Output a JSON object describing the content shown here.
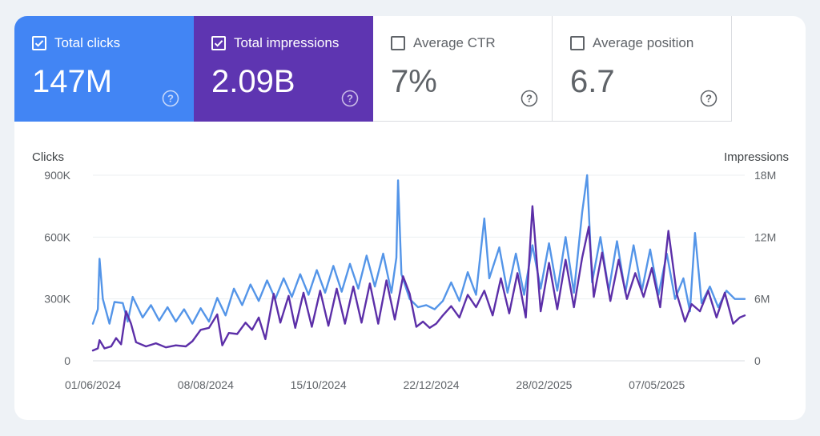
{
  "metrics": [
    {
      "label": "Total clicks",
      "value": "147M",
      "selected": true,
      "color": "#4285f4"
    },
    {
      "label": "Total impressions",
      "value": "2.09B",
      "selected": true,
      "color": "#5e35b1"
    },
    {
      "label": "Average CTR",
      "value": "7%",
      "selected": false,
      "color": "#ffffff"
    },
    {
      "label": "Average position",
      "value": "6.7",
      "selected": false,
      "color": "#ffffff"
    }
  ],
  "chart_data": {
    "type": "line",
    "xlabel": "",
    "ylabel": "Clicks",
    "y2label": "Impressions",
    "ylim": [
      0,
      900000
    ],
    "y2lim": [
      0,
      18000000
    ],
    "y_ticks": [
      "0",
      "300K",
      "600K",
      "900K"
    ],
    "y2_ticks": [
      "0",
      "6M",
      "12M",
      "18M"
    ],
    "x_range": [
      "2024-06-01",
      "2025-06-29"
    ],
    "x_ticks": [
      "01/06/2024",
      "08/08/2024",
      "15/10/2024",
      "22/12/2024",
      "28/02/2025",
      "07/05/2025"
    ],
    "grid": true,
    "series": [
      {
        "name": "Clicks",
        "axis": "left",
        "color": "#5495e8",
        "points": [
          [
            "2024-06-01",
            180000
          ],
          [
            "2024-06-04",
            250000
          ],
          [
            "2024-06-05",
            495000
          ],
          [
            "2024-06-07",
            300000
          ],
          [
            "2024-06-11",
            180000
          ],
          [
            "2024-06-14",
            285000
          ],
          [
            "2024-06-19",
            280000
          ],
          [
            "2024-06-22",
            190000
          ],
          [
            "2024-06-25",
            310000
          ],
          [
            "2024-07-01",
            210000
          ],
          [
            "2024-07-06",
            270000
          ],
          [
            "2024-07-11",
            195000
          ],
          [
            "2024-07-16",
            260000
          ],
          [
            "2024-07-21",
            190000
          ],
          [
            "2024-07-26",
            250000
          ],
          [
            "2024-07-31",
            180000
          ],
          [
            "2024-08-05",
            255000
          ],
          [
            "2024-08-10",
            190000
          ],
          [
            "2024-08-15",
            305000
          ],
          [
            "2024-08-20",
            220000
          ],
          [
            "2024-08-25",
            350000
          ],
          [
            "2024-08-30",
            270000
          ],
          [
            "2024-09-04",
            370000
          ],
          [
            "2024-09-09",
            290000
          ],
          [
            "2024-09-14",
            390000
          ],
          [
            "2024-09-19",
            300000
          ],
          [
            "2024-09-24",
            400000
          ],
          [
            "2024-09-29",
            310000
          ],
          [
            "2024-10-04",
            420000
          ],
          [
            "2024-10-09",
            320000
          ],
          [
            "2024-10-14",
            440000
          ],
          [
            "2024-10-19",
            330000
          ],
          [
            "2024-10-24",
            460000
          ],
          [
            "2024-10-29",
            335000
          ],
          [
            "2024-11-03",
            470000
          ],
          [
            "2024-11-08",
            350000
          ],
          [
            "2024-11-13",
            510000
          ],
          [
            "2024-11-18",
            360000
          ],
          [
            "2024-11-23",
            520000
          ],
          [
            "2024-11-28",
            330000
          ],
          [
            "2024-12-01",
            500000
          ],
          [
            "2024-12-02",
            875000
          ],
          [
            "2024-12-04",
            420000
          ],
          [
            "2024-12-09",
            300000
          ],
          [
            "2024-12-14",
            260000
          ],
          [
            "2024-12-19",
            270000
          ],
          [
            "2024-12-24",
            250000
          ],
          [
            "2024-12-29",
            290000
          ],
          [
            "2025-01-03",
            380000
          ],
          [
            "2025-01-08",
            290000
          ],
          [
            "2025-01-13",
            430000
          ],
          [
            "2025-01-18",
            320000
          ],
          [
            "2025-01-23",
            690000
          ],
          [
            "2025-01-26",
            400000
          ],
          [
            "2025-02-01",
            550000
          ],
          [
            "2025-02-06",
            330000
          ],
          [
            "2025-02-11",
            520000
          ],
          [
            "2025-02-16",
            320000
          ],
          [
            "2025-02-21",
            560000
          ],
          [
            "2025-02-26",
            350000
          ],
          [
            "2025-03-03",
            570000
          ],
          [
            "2025-03-08",
            340000
          ],
          [
            "2025-03-13",
            600000
          ],
          [
            "2025-03-18",
            330000
          ],
          [
            "2025-03-23",
            720000
          ],
          [
            "2025-03-26",
            900000
          ],
          [
            "2025-03-29",
            380000
          ],
          [
            "2025-04-03",
            600000
          ],
          [
            "2025-04-08",
            340000
          ],
          [
            "2025-04-13",
            580000
          ],
          [
            "2025-04-18",
            330000
          ],
          [
            "2025-04-23",
            560000
          ],
          [
            "2025-04-28",
            340000
          ],
          [
            "2025-05-03",
            540000
          ],
          [
            "2025-05-08",
            320000
          ],
          [
            "2025-05-13",
            520000
          ],
          [
            "2025-05-18",
            300000
          ],
          [
            "2025-05-23",
            400000
          ],
          [
            "2025-05-27",
            240000
          ],
          [
            "2025-05-30",
            620000
          ],
          [
            "2025-06-03",
            280000
          ],
          [
            "2025-06-08",
            360000
          ],
          [
            "2025-06-13",
            260000
          ],
          [
            "2025-06-18",
            340000
          ],
          [
            "2025-06-23",
            300000
          ],
          [
            "2025-06-29",
            300000
          ]
        ]
      },
      {
        "name": "Impressions",
        "axis": "right",
        "color": "#5c2fa8",
        "points": [
          [
            "2024-06-01",
            1000000
          ],
          [
            "2024-06-04",
            1200000
          ],
          [
            "2024-06-05",
            2000000
          ],
          [
            "2024-06-08",
            1200000
          ],
          [
            "2024-06-12",
            1400000
          ],
          [
            "2024-06-15",
            2200000
          ],
          [
            "2024-06-18",
            1600000
          ],
          [
            "2024-06-21",
            4800000
          ],
          [
            "2024-06-24",
            3600000
          ],
          [
            "2024-06-27",
            1800000
          ],
          [
            "2024-07-03",
            1400000
          ],
          [
            "2024-07-09",
            1700000
          ],
          [
            "2024-07-15",
            1300000
          ],
          [
            "2024-07-21",
            1500000
          ],
          [
            "2024-07-27",
            1400000
          ],
          [
            "2024-07-31",
            1900000
          ],
          [
            "2024-08-05",
            3000000
          ],
          [
            "2024-08-10",
            3200000
          ],
          [
            "2024-08-15",
            4500000
          ],
          [
            "2024-08-18",
            1500000
          ],
          [
            "2024-08-22",
            2700000
          ],
          [
            "2024-08-27",
            2600000
          ],
          [
            "2024-09-01",
            3700000
          ],
          [
            "2024-09-05",
            3000000
          ],
          [
            "2024-09-09",
            4200000
          ],
          [
            "2024-09-13",
            2100000
          ],
          [
            "2024-09-18",
            6500000
          ],
          [
            "2024-09-22",
            3700000
          ],
          [
            "2024-09-27",
            6300000
          ],
          [
            "2024-10-01",
            3200000
          ],
          [
            "2024-10-06",
            6600000
          ],
          [
            "2024-10-11",
            3300000
          ],
          [
            "2024-10-16",
            6800000
          ],
          [
            "2024-10-21",
            3400000
          ],
          [
            "2024-10-26",
            7000000
          ],
          [
            "2024-10-31",
            3600000
          ],
          [
            "2024-11-05",
            7200000
          ],
          [
            "2024-11-10",
            3700000
          ],
          [
            "2024-11-15",
            7500000
          ],
          [
            "2024-11-20",
            3600000
          ],
          [
            "2024-11-25",
            7800000
          ],
          [
            "2024-11-30",
            4000000
          ],
          [
            "2024-12-05",
            8200000
          ],
          [
            "2024-12-09",
            6500000
          ],
          [
            "2024-12-13",
            3300000
          ],
          [
            "2024-12-17",
            3800000
          ],
          [
            "2024-12-21",
            3200000
          ],
          [
            "2024-12-25",
            3600000
          ],
          [
            "2024-12-29",
            4400000
          ],
          [
            "2025-01-03",
            5300000
          ],
          [
            "2025-01-08",
            4200000
          ],
          [
            "2025-01-13",
            6400000
          ],
          [
            "2025-01-18",
            5200000
          ],
          [
            "2025-01-23",
            6800000
          ],
          [
            "2025-01-28",
            4400000
          ],
          [
            "2025-02-02",
            8000000
          ],
          [
            "2025-02-07",
            4600000
          ],
          [
            "2025-02-12",
            8500000
          ],
          [
            "2025-02-17",
            4200000
          ],
          [
            "2025-02-21",
            15000000
          ],
          [
            "2025-02-26",
            4800000
          ],
          [
            "2025-03-03",
            9500000
          ],
          [
            "2025-03-08",
            5000000
          ],
          [
            "2025-03-13",
            9800000
          ],
          [
            "2025-03-18",
            5200000
          ],
          [
            "2025-03-23",
            10000000
          ],
          [
            "2025-03-27",
            13000000
          ],
          [
            "2025-03-30",
            6200000
          ],
          [
            "2025-04-04",
            10500000
          ],
          [
            "2025-04-09",
            5800000
          ],
          [
            "2025-04-14",
            9800000
          ],
          [
            "2025-04-19",
            6000000
          ],
          [
            "2025-04-24",
            8500000
          ],
          [
            "2025-04-29",
            6200000
          ],
          [
            "2025-05-04",
            9000000
          ],
          [
            "2025-05-09",
            5200000
          ],
          [
            "2025-05-14",
            12600000
          ],
          [
            "2025-05-19",
            6500000
          ],
          [
            "2025-05-24",
            3800000
          ],
          [
            "2025-05-28",
            5500000
          ],
          [
            "2025-06-02",
            4800000
          ],
          [
            "2025-06-07",
            6800000
          ],
          [
            "2025-06-12",
            4200000
          ],
          [
            "2025-06-17",
            6600000
          ],
          [
            "2025-06-22",
            3600000
          ],
          [
            "2025-06-26",
            4200000
          ],
          [
            "2025-06-29",
            4400000
          ]
        ]
      }
    ]
  }
}
